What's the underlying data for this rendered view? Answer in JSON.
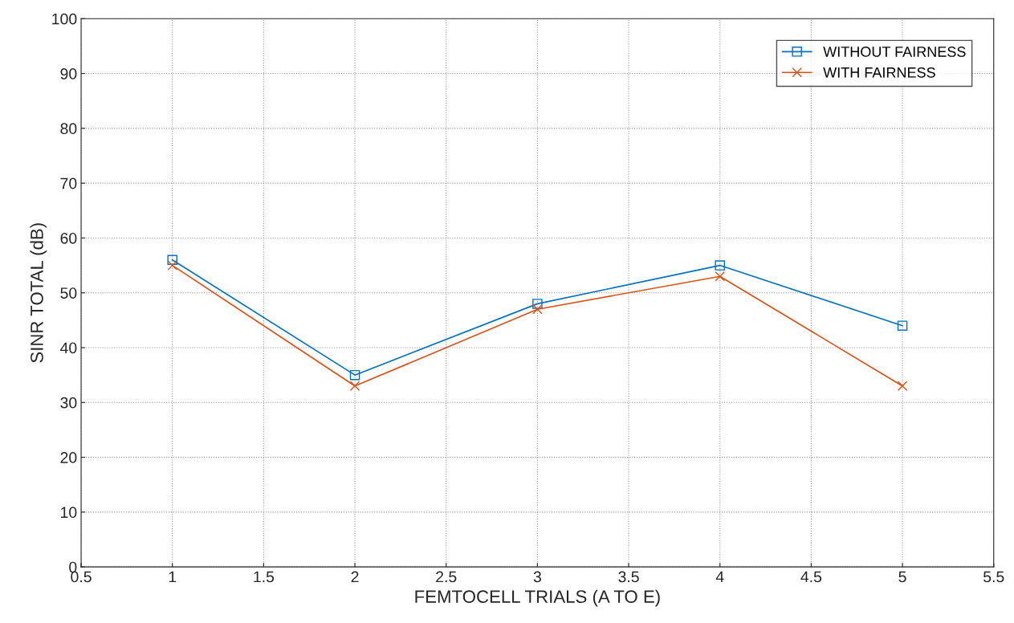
{
  "chart_data": {
    "type": "line",
    "xlabel": "FEMTOCELL TRIALS (A TO E)",
    "ylabel": "SINR TOTAL (dB)",
    "x": [
      1,
      2,
      3,
      4,
      5
    ],
    "series": [
      {
        "name": "WITHOUT FAIRNESS",
        "color": "#0072bd",
        "marker": "square",
        "values": [
          56,
          35,
          48,
          55,
          44
        ]
      },
      {
        "name": "WITH FAIRNESS",
        "color": "#d95319",
        "marker": "cross",
        "values": [
          55,
          33,
          47,
          53,
          33
        ]
      }
    ],
    "xlim": [
      0.5,
      5.5
    ],
    "xticks": [
      0.5,
      1,
      1.5,
      2,
      2.5,
      3,
      3.5,
      4,
      4.5,
      5,
      5.5
    ],
    "ylim": [
      0,
      100
    ],
    "yticks": [
      0,
      10,
      20,
      30,
      40,
      50,
      60,
      70,
      80,
      90,
      100
    ],
    "grid": true,
    "legend": "top right",
    "line_style": "solid"
  }
}
